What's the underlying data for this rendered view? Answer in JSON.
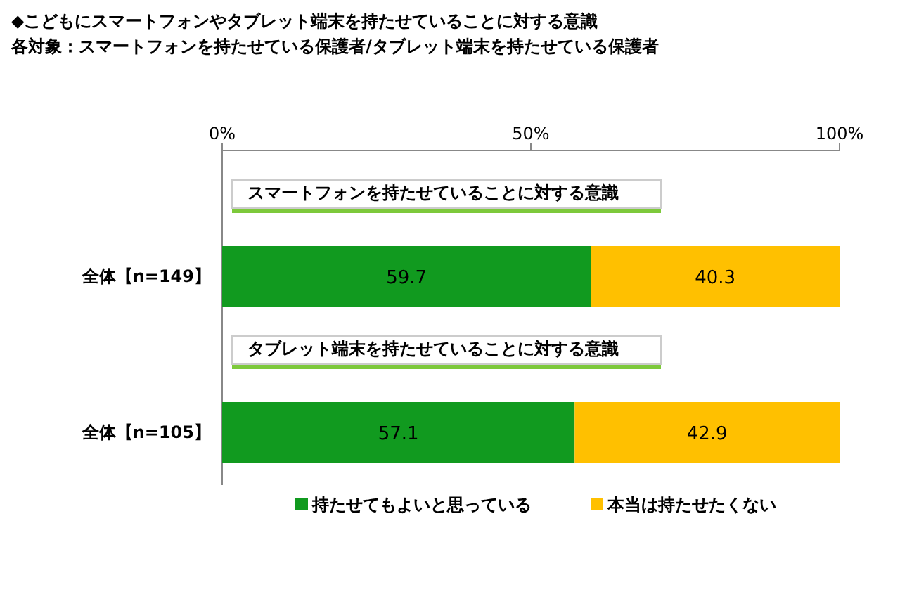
{
  "chart_data": {
    "type": "bar",
    "orientation": "horizontal",
    "stacked": true,
    "title": "◆こどもにスマートフォンやタブレット端末を持たせていることに対する意識",
    "subtitle": "各対象：スマートフォンを持たせている保護者/タブレット端末を持たせている保護者",
    "categories": [
      "全体【n=149】",
      "全体【n=105】"
    ],
    "series": [
      {
        "name": "持たせてもよいと思っている",
        "color": "#119a1f",
        "values": [
          59.7,
          57.1
        ]
      },
      {
        "name": "本当は持たせたくない",
        "color": "#ffc000",
        "values": [
          40.3,
          42.9
        ]
      }
    ],
    "annotations": [
      "スマートフォンを持たせていることに対する意識",
      "タブレット端末を持たせていることに対する意識"
    ],
    "xlim": [
      0,
      100
    ],
    "xticks": [
      {
        "value": 0,
        "label": "0%"
      },
      {
        "value": 50,
        "label": "50%"
      },
      {
        "value": 100,
        "label": "100%"
      }
    ],
    "data_labels": true,
    "legend": "bottom"
  }
}
